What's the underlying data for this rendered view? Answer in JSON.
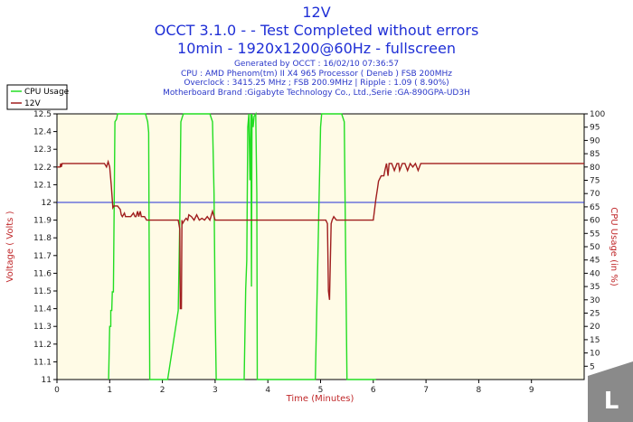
{
  "header": {
    "title": "12V",
    "subtitle1": "OCCT 3.1.0 -  - Test Completed without errors",
    "subtitle2": "10min - 1920x1200@60Hz - fullscreen",
    "generated": "Generated by OCCT : 16/02/10 07:36:57",
    "cpu": "CPU : AMD Phenom(tm) II X4 965 Processor ( Deneb ) FSB 200MHz",
    "overclock": "Overclock : 3415.25 MHz ; FSB 200.9MHz | Ripple : 1.09 ( 8.90%)",
    "motherboard": "Motherboard Brand :Gigabyte Technology Co., Ltd.,Serie :GA-890GPA-UD3H"
  },
  "watermark": {
    "letter": "L"
  },
  "chart_data": {
    "type": "line",
    "title": "12V",
    "xlabel": "Time (Minutes)",
    "ylabel": "Voltage ( Volts )",
    "y2label": "CPU Usage (in %)",
    "xlim": [
      0,
      10
    ],
    "ylim": [
      11,
      12.5
    ],
    "y2lim": [
      0,
      100
    ],
    "x_ticks": [
      "0",
      "1",
      "2",
      "3",
      "4",
      "5",
      "6",
      "7",
      "8",
      "9"
    ],
    "y_ticks": [
      "11",
      "11.1",
      "11.2",
      "11.3",
      "11.4",
      "11.5",
      "11.6",
      "11.7",
      "11.8",
      "11.9",
      "12",
      "12.1",
      "12.2",
      "12.3",
      "12.4",
      "12.5"
    ],
    "y2_ticks": [
      "5",
      "10",
      "15",
      "20",
      "25",
      "30",
      "35",
      "40",
      "45",
      "50",
      "55",
      "60",
      "65",
      "70",
      "75",
      "80",
      "85",
      "90",
      "95",
      "100"
    ],
    "reference_line": {
      "y": 12.0,
      "color": "#1f2fd6"
    },
    "legend_position": "top-left",
    "grid": false,
    "series": [
      {
        "name": "CPU Usage",
        "axis": "right",
        "color": "#22dd22",
        "x": [
          0.98,
          1.0,
          1.02,
          1.02,
          1.04,
          1.05,
          1.07,
          1.1,
          1.13,
          1.15,
          1.2,
          1.5,
          1.6,
          1.68,
          1.72,
          1.74,
          1.76,
          1.8,
          2.1,
          2.3,
          2.33,
          2.35,
          2.38,
          2.4,
          2.45,
          2.55,
          2.9,
          2.95,
          2.98,
          3.0,
          3.02,
          3.1,
          3.2,
          3.5,
          3.55,
          3.58,
          3.6,
          3.62,
          3.64,
          3.66,
          3.68,
          3.69,
          3.7,
          3.72,
          3.74,
          3.77,
          3.79,
          3.8,
          3.82,
          3.86,
          3.9,
          3.95,
          4.0,
          4.25,
          4.33,
          4.35,
          4.4,
          4.6,
          4.8,
          4.9,
          5.0,
          5.02,
          5.05,
          5.1,
          5.15,
          5.2,
          5.3,
          5.38,
          5.4,
          5.45,
          5.5,
          5.9,
          5.96,
          5.98,
          6.0,
          6.02,
          6.04,
          6.05
        ],
        "y": [
          0,
          20,
          20,
          26,
          26,
          33,
          33,
          97,
          98,
          100,
          100,
          100,
          100,
          100,
          97,
          93,
          0,
          0,
          0,
          26,
          60,
          97,
          99,
          100,
          100,
          100,
          100,
          97,
          70,
          27,
          0,
          0,
          0,
          0,
          0,
          34,
          45,
          95,
          100,
          75,
          100,
          35,
          100,
          95,
          99,
          100,
          70,
          0,
          0,
          0,
          0,
          0,
          0,
          0,
          0,
          0,
          0,
          0,
          0,
          0,
          95,
          100,
          100,
          100,
          100,
          100,
          100,
          100,
          100,
          97,
          0,
          0,
          0,
          0,
          0,
          0,
          0,
          0
        ]
      },
      {
        "name": "12V",
        "axis": "left",
        "color": "#a01e1e",
        "x": [
          0.0,
          0.06,
          0.07,
          0.08,
          0.1,
          0.3,
          0.5,
          0.7,
          0.9,
          0.94,
          0.97,
          1.0,
          1.03,
          1.06,
          1.08,
          1.1,
          1.15,
          1.2,
          1.22,
          1.24,
          1.28,
          1.3,
          1.33,
          1.36,
          1.4,
          1.45,
          1.48,
          1.5,
          1.53,
          1.55,
          1.58,
          1.6,
          1.63,
          1.66,
          1.7,
          1.8,
          2.0,
          2.2,
          2.3,
          2.33,
          2.34,
          2.36,
          2.37,
          2.38,
          2.42,
          2.45,
          2.48,
          2.5,
          2.55,
          2.6,
          2.65,
          2.7,
          2.75,
          2.8,
          2.85,
          2.9,
          2.95,
          3.0,
          3.2,
          3.4,
          3.6,
          3.8,
          4.0,
          4.2,
          4.4,
          4.6,
          4.8,
          5.0,
          5.1,
          5.13,
          5.15,
          5.17,
          5.2,
          5.22,
          5.25,
          5.3,
          5.35,
          5.4,
          5.6,
          5.8,
          5.95,
          6.0,
          6.02,
          6.05,
          6.08,
          6.1,
          6.15,
          6.2,
          6.22,
          6.25,
          6.28,
          6.3,
          6.35,
          6.4,
          6.45,
          6.48,
          6.5,
          6.55,
          6.6,
          6.65,
          6.7,
          6.75,
          6.8,
          6.85,
          6.9,
          6.95,
          7.0,
          7.5,
          8.0,
          8.5,
          9.0,
          9.5,
          10.0
        ],
        "y": [
          12.2,
          12.2,
          12.22,
          12.2,
          12.22,
          12.22,
          12.22,
          12.22,
          12.22,
          12.2,
          12.23,
          12.2,
          12.1,
          11.97,
          11.98,
          11.98,
          11.98,
          11.96,
          11.93,
          11.92,
          11.94,
          11.92,
          11.92,
          11.92,
          11.92,
          11.94,
          11.92,
          11.92,
          11.95,
          11.92,
          11.95,
          11.92,
          11.92,
          11.92,
          11.9,
          11.9,
          11.9,
          11.9,
          11.9,
          11.85,
          11.4,
          11.4,
          11.9,
          11.88,
          11.9,
          11.91,
          11.9,
          11.93,
          11.92,
          11.9,
          11.93,
          11.9,
          11.91,
          11.9,
          11.92,
          11.9,
          11.95,
          11.9,
          11.9,
          11.9,
          11.9,
          11.9,
          11.9,
          11.9,
          11.9,
          11.9,
          11.9,
          11.9,
          11.9,
          11.88,
          11.5,
          11.45,
          11.88,
          11.9,
          11.92,
          11.9,
          11.9,
          11.9,
          11.9,
          11.9,
          11.9,
          11.9,
          11.95,
          12.02,
          12.08,
          12.12,
          12.15,
          12.15,
          12.18,
          12.22,
          12.15,
          12.22,
          12.22,
          12.18,
          12.22,
          12.22,
          12.18,
          12.22,
          12.22,
          12.18,
          12.22,
          12.2,
          12.22,
          12.18,
          12.22,
          12.22,
          12.22,
          12.22,
          12.22,
          12.22,
          12.22,
          12.22,
          12.22
        ]
      }
    ]
  }
}
